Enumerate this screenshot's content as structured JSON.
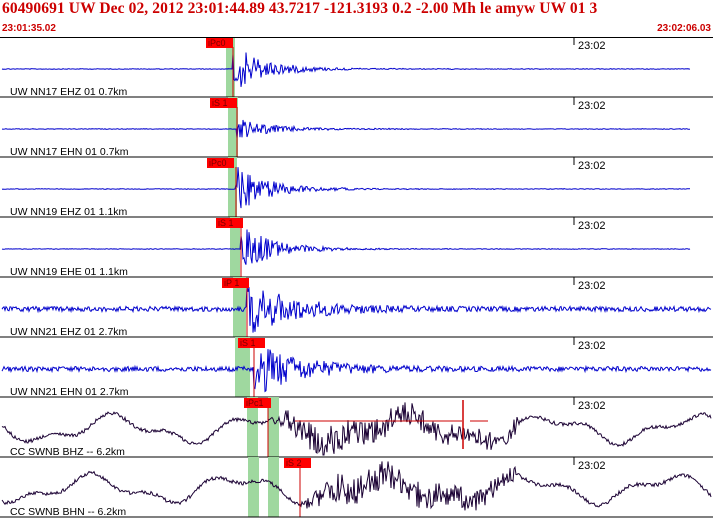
{
  "header": {
    "title": "60490691 UW Dec 02, 2012 23:01:44.89    43.7217  -121.3193   0.2  -2.00 Mh le  amyw UW 01    3",
    "start_time": "23:01:35.02",
    "end_time": "23:02:06.03"
  },
  "colors": {
    "header_text": "#cc0000",
    "trace_blue": "#0000cc",
    "trace_dark": "#1a0033",
    "pick_box": "#ff0000",
    "pick_window": "#9fd89f",
    "divider": "#000000"
  },
  "traces": [
    {
      "label": "UW NN17 EHZ 01 0.7km",
      "time_mark": "23:02",
      "pick": "iPc0",
      "color": "blue",
      "kind": "quiet"
    },
    {
      "label": "UW NN17 EHN 01 0.7km",
      "time_mark": "23:02",
      "pick": "iS 1",
      "color": "blue",
      "kind": "quiet_s"
    },
    {
      "label": "UW NN19 EHZ 01 1.1km",
      "time_mark": "23:02",
      "pick": "iPc0",
      "color": "blue",
      "kind": "quiet"
    },
    {
      "label": "UW NN19 EHE 01 1.1km",
      "time_mark": "23:02",
      "pick": "iS 1",
      "color": "blue",
      "kind": "quiet"
    },
    {
      "label": "UW NN21 EHZ 01 2.7km",
      "time_mark": "23:02",
      "pick": "iP 1",
      "color": "blue",
      "kind": "noisy"
    },
    {
      "label": "UW NN21 EHN 01 2.7km",
      "time_mark": "23:02",
      "pick": "iS 1",
      "color": "blue",
      "kind": "noisy"
    },
    {
      "label": "CC SWNB BHZ -- 6.2km",
      "time_mark": "23:02",
      "pick": "iPc1",
      "color": "dark",
      "kind": "wavy"
    },
    {
      "label": "CC SWNB BHN -- 6.2km",
      "time_mark": "23:02",
      "pick": "iS 2",
      "color": "dark",
      "kind": "wavy"
    }
  ]
}
